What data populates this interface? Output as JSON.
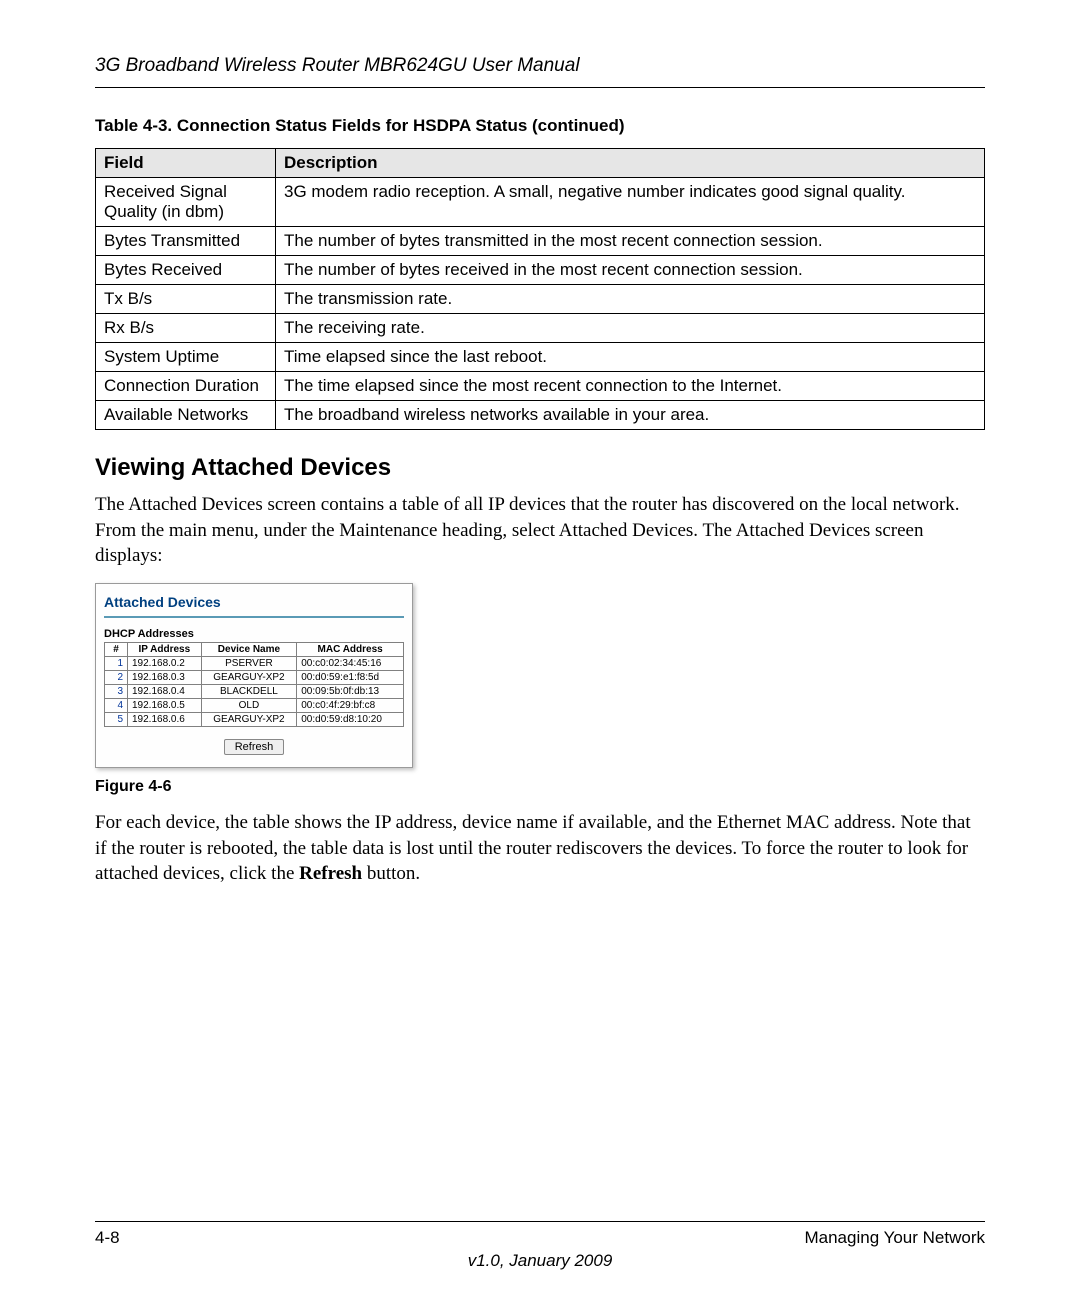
{
  "header": "3G Broadband Wireless Router MBR624GU User Manual",
  "table_caption": "Table 4-3.  Connection Status Fields for HSDPA Status (continued)",
  "status_table": {
    "headers": {
      "field": "Field",
      "description": "Description"
    },
    "rows": [
      {
        "field": "Received Signal Quality (in dbm)",
        "desc": "3G modem radio reception.  A small, negative number indicates good signal quality."
      },
      {
        "field": "Bytes Transmitted",
        "desc": "The number of bytes transmitted in the most recent connection session."
      },
      {
        "field": "Bytes Received",
        "desc": "The number of bytes received in the most recent connection session."
      },
      {
        "field": "Tx B/s",
        "desc": "The transmission rate."
      },
      {
        "field": "Rx B/s",
        "desc": "The receiving rate."
      },
      {
        "field": "System Uptime",
        "desc": "Time elapsed since the last reboot."
      },
      {
        "field": "Connection Duration",
        "desc": "The time elapsed since the most recent connection to the Internet."
      },
      {
        "field": "Available Networks",
        "desc": "The broadband wireless networks available in your area."
      }
    ]
  },
  "section_title": "Viewing Attached Devices",
  "para1": "The Attached Devices screen contains a table of all IP devices that the router has discovered on the local network. From the main menu, under the Maintenance heading, select Attached Devices. The Attached Devices screen displays:",
  "figure": {
    "title": "Attached Devices",
    "subtitle": "DHCP Addresses",
    "headers": {
      "num": "#",
      "ip": "IP Address",
      "dev": "Device Name",
      "mac": "MAC Address"
    },
    "rows": [
      {
        "n": "1",
        "ip": "192.168.0.2",
        "dev": "PSERVER",
        "mac": "00:c0:02:34:45:16"
      },
      {
        "n": "2",
        "ip": "192.168.0.3",
        "dev": "GEARGUY-XP2",
        "mac": "00:d0:59:e1:f8:5d"
      },
      {
        "n": "3",
        "ip": "192.168.0.4",
        "dev": "BLACKDELL",
        "mac": "00:09:5b:0f:db:13"
      },
      {
        "n": "4",
        "ip": "192.168.0.5",
        "dev": "OLD",
        "mac": "00:c0:4f:29:bf:c8"
      },
      {
        "n": "5",
        "ip": "192.168.0.6",
        "dev": "GEARGUY-XP2",
        "mac": "00:d0:59:d8:10:20"
      }
    ],
    "refresh_label": "Refresh"
  },
  "figure_caption": "Figure 4-6",
  "para2_a": "For each device, the table shows the IP address, device name if available, and the Ethernet MAC address. Note that if the router is rebooted, the table data is lost until the router rediscovers the devices. To force the router to look for attached devices, click the ",
  "para2_bold": "Refresh",
  "para2_b": " button.",
  "footer": {
    "left": "4-8",
    "right": "Managing Your Network"
  },
  "version": "v1.0, January 2009"
}
